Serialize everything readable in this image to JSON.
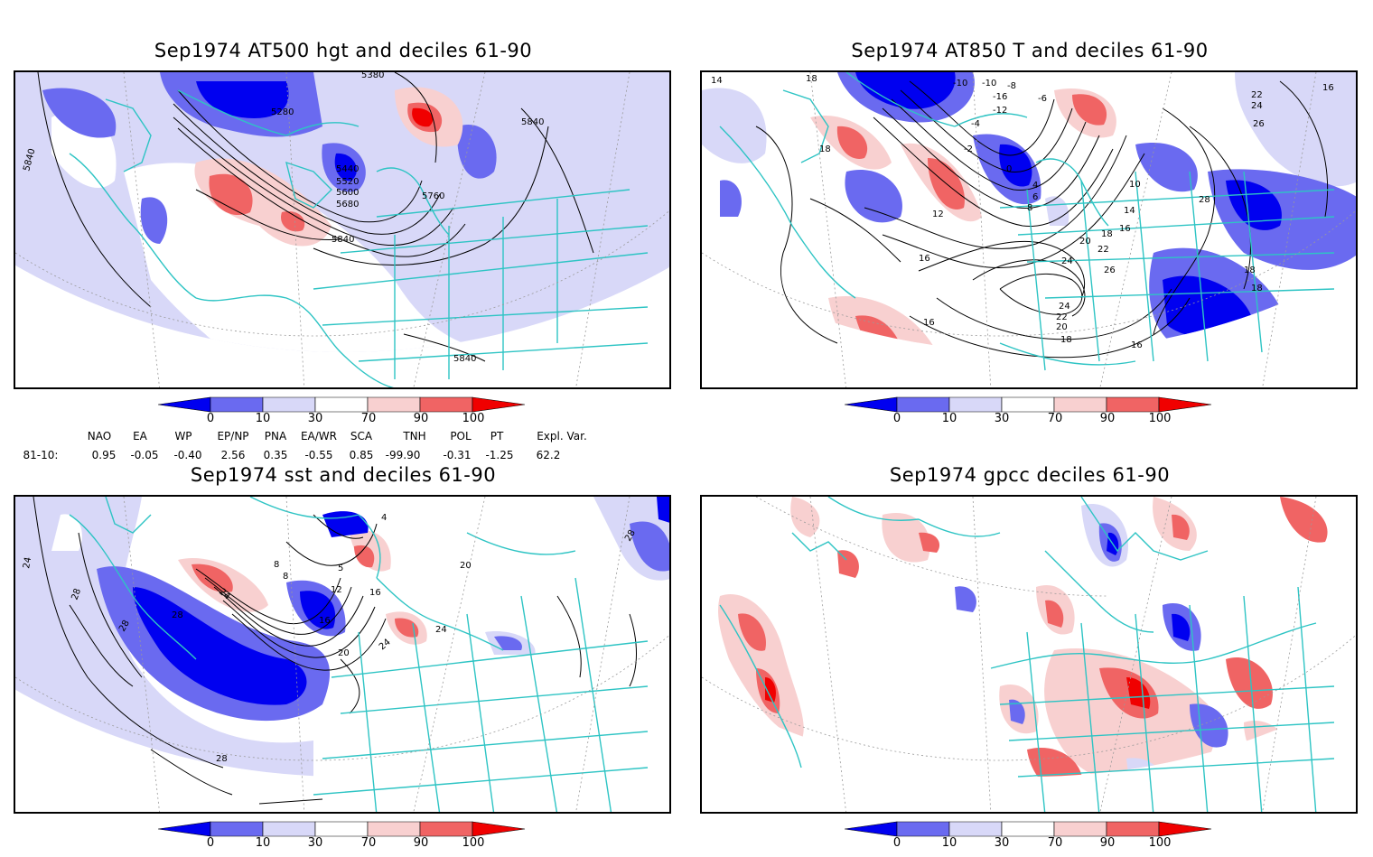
{
  "panels": [
    {
      "title": "Sep1974 AT500 hgt and deciles 61-90",
      "labels": [
        "5840",
        "5840",
        "5280",
        "5380",
        "5440",
        "5520",
        "5600",
        "5680",
        "5760",
        "5840",
        "5840"
      ]
    },
    {
      "title": "Sep1974 AT850 T and deciles 61-90",
      "labels": [
        "14",
        "18",
        "18",
        "-10",
        "-8",
        "-6",
        "-12",
        "-16",
        "-10",
        "-4",
        "-2",
        "0",
        "4",
        "6",
        "8",
        "22",
        "24",
        "26",
        "28",
        "16",
        "12",
        "14",
        "10",
        "20",
        "22",
        "18",
        "16",
        "24",
        "26",
        "24",
        "22",
        "20",
        "18",
        "16",
        "16",
        "18",
        "18",
        "16"
      ]
    },
    {
      "title": "Sep1974 sst and deciles 61-90",
      "labels": [
        "24",
        "28",
        "28",
        "28",
        "24",
        "8",
        "4",
        "8",
        "5",
        "12",
        "16",
        "20",
        "24",
        "24",
        "20",
        "16",
        "28",
        "28"
      ]
    },
    {
      "title": "Sep1974 gpcc deciles 61-90",
      "labels": []
    }
  ],
  "colorbar": {
    "ticks": [
      "0",
      "10",
      "30",
      "70",
      "90",
      "100"
    ],
    "colors": [
      "#0000f0",
      "#6a6af0",
      "#d8d8f8",
      "#ffffff",
      "#f8d0d0",
      "#f06464",
      "#f00000"
    ]
  },
  "indices": {
    "headers": [
      "NAO",
      "EA",
      "WP",
      "EP/NP",
      "PNA",
      "EA/WR",
      "SCA",
      "TNH",
      "POL",
      "PT",
      "Expl. Var."
    ],
    "row_label": "81-10:",
    "values": [
      "0.95",
      "-0.05",
      "-0.40",
      "2.56",
      "0.35",
      "-0.55",
      "0.85",
      "-99.90",
      "-0.31",
      "-1.25",
      "62.2"
    ]
  },
  "colors": {
    "coast": "#2ec4c4",
    "grid": "#9a9a9a"
  }
}
